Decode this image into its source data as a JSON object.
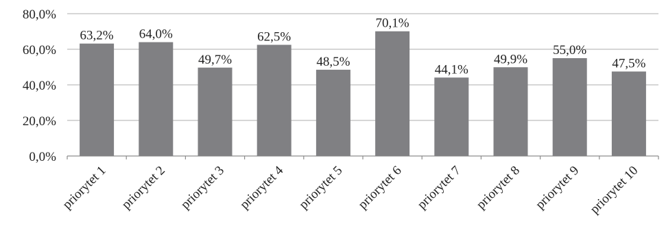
{
  "chart_data": {
    "type": "bar",
    "categories": [
      "priorytet 1",
      "priorytet 2",
      "priorytet 3",
      "priorytet 4",
      "priorytet 5",
      "priorytet 6",
      "priorytet 7",
      "priorytet 8",
      "priorytet 9",
      "priorytet 10"
    ],
    "values": [
      63.2,
      64.0,
      49.7,
      62.5,
      48.5,
      70.1,
      44.1,
      49.9,
      55.0,
      47.5
    ],
    "value_labels": [
      "63,2%",
      "64,0%",
      "49,7%",
      "62,5%",
      "48,5%",
      "70,1%",
      "44,1%",
      "49,9%",
      "55,0%",
      "47,5%"
    ],
    "y_ticks": [
      0,
      20,
      40,
      60,
      80
    ],
    "y_tick_labels": [
      "0,0%",
      "20,0%",
      "40,0%",
      "60,0%",
      "80,0%"
    ],
    "ylim": [
      0,
      80
    ],
    "grid": true,
    "legend": "none",
    "title": "",
    "xlabel": "",
    "ylabel": "",
    "colors": {
      "bar": "#808083",
      "grid": "#bdbdbd",
      "axis": "#8c8c8c",
      "text": "#222222"
    }
  }
}
